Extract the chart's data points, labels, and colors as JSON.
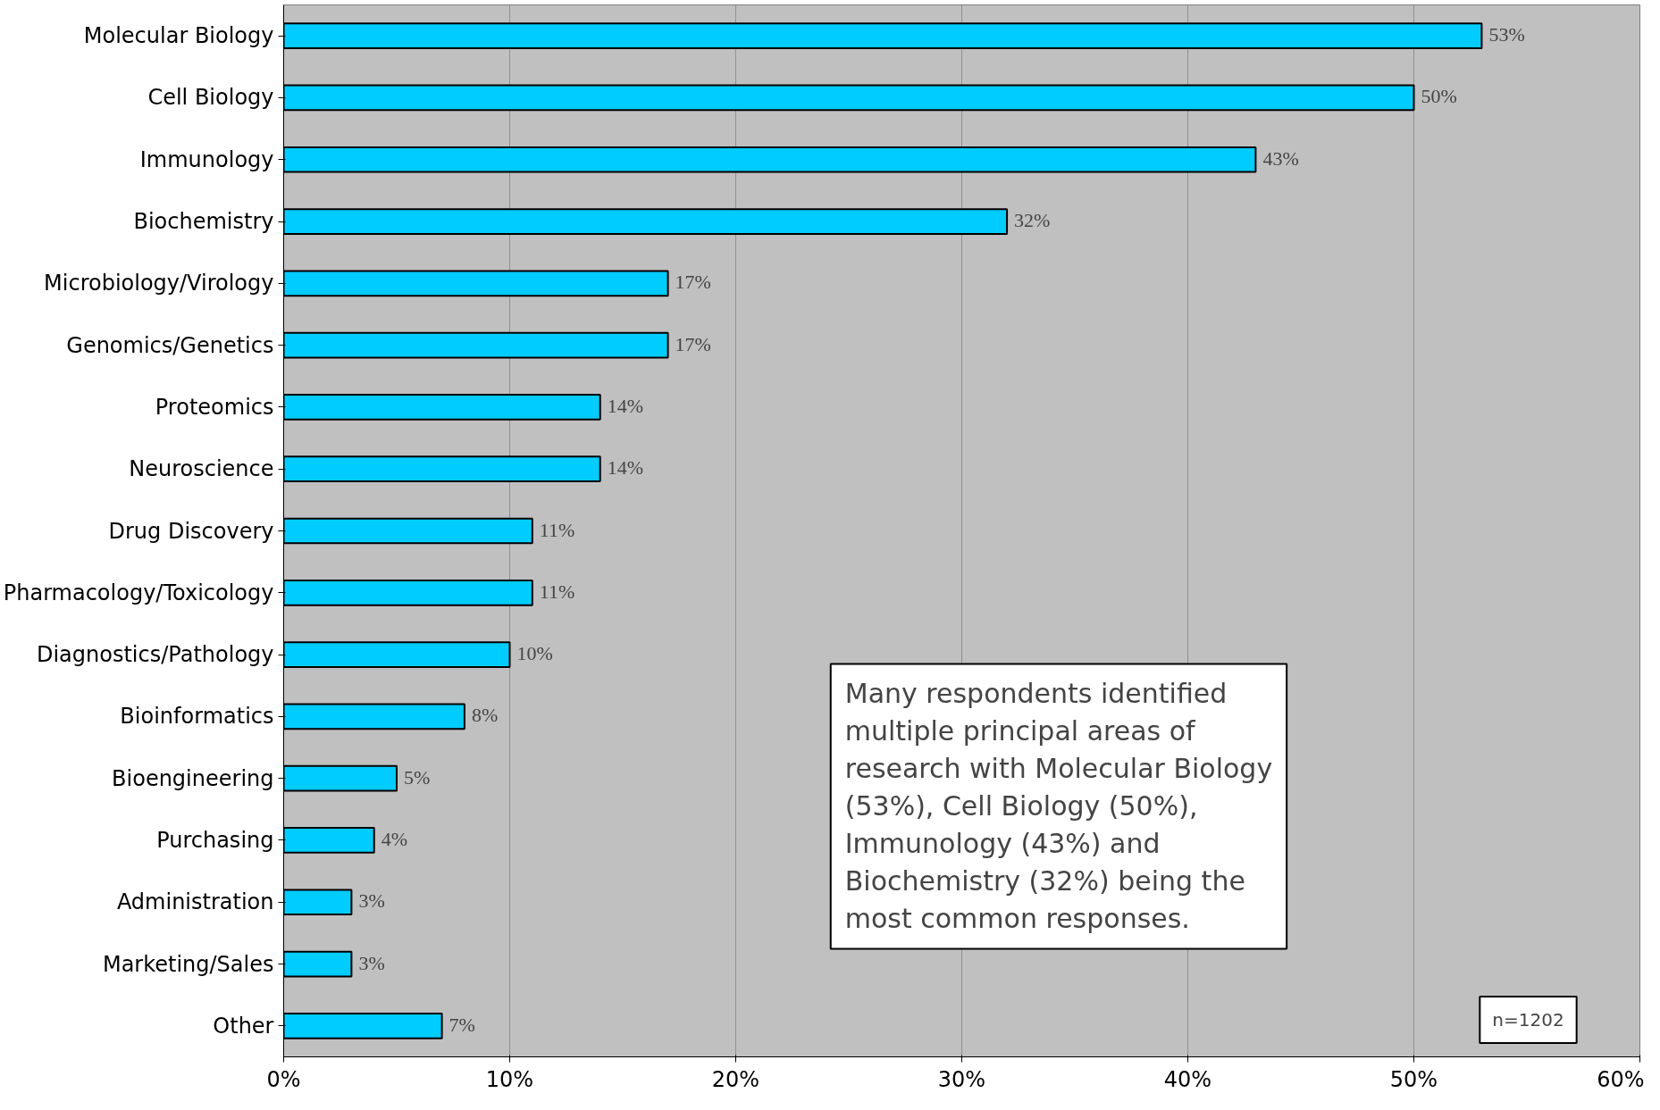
{
  "chart_data": {
    "type": "bar",
    "orientation": "horizontal",
    "categories": [
      "Molecular Biology",
      "Cell Biology",
      "Immunology",
      "Biochemistry",
      "Microbiology/Virology",
      "Genomics/Genetics",
      "Proteomics",
      "Neuroscience",
      "Drug Discovery",
      "Pharmacology/Toxicology",
      "Diagnostics/Pathology",
      "Bioinformatics",
      "Bioengineering",
      "Purchasing",
      "Administration",
      "Marketing/Sales",
      "Other"
    ],
    "values": [
      53,
      50,
      43,
      32,
      17,
      17,
      14,
      14,
      11,
      11,
      10,
      8,
      5,
      4,
      3,
      3,
      7
    ],
    "value_labels": [
      "53%",
      "50%",
      "43%",
      "32%",
      "17%",
      "17%",
      "14%",
      "14%",
      "11%",
      "11%",
      "10%",
      "8%",
      "5%",
      "4%",
      "3%",
      "3%",
      "7%"
    ],
    "color": "#00ccff",
    "xlim": [
      0,
      60
    ],
    "xticks": [
      {
        "value": 0,
        "label": "0%"
      },
      {
        "value": 10,
        "label": "10%"
      },
      {
        "value": 20,
        "label": "20%"
      },
      {
        "value": 30,
        "label": "30%"
      },
      {
        "value": 40,
        "label": "40%"
      },
      {
        "value": 50,
        "label": "50%"
      },
      {
        "value": 60,
        "label": "60%"
      }
    ],
    "grid": "x",
    "annotations": [
      "Many respondents identified multiple principal areas of research with Molecular Biology (53%), Cell Biology (50%), Immunology (43%) and Biochemistry (32%) being the most common responses.",
      "n=1202"
    ]
  }
}
